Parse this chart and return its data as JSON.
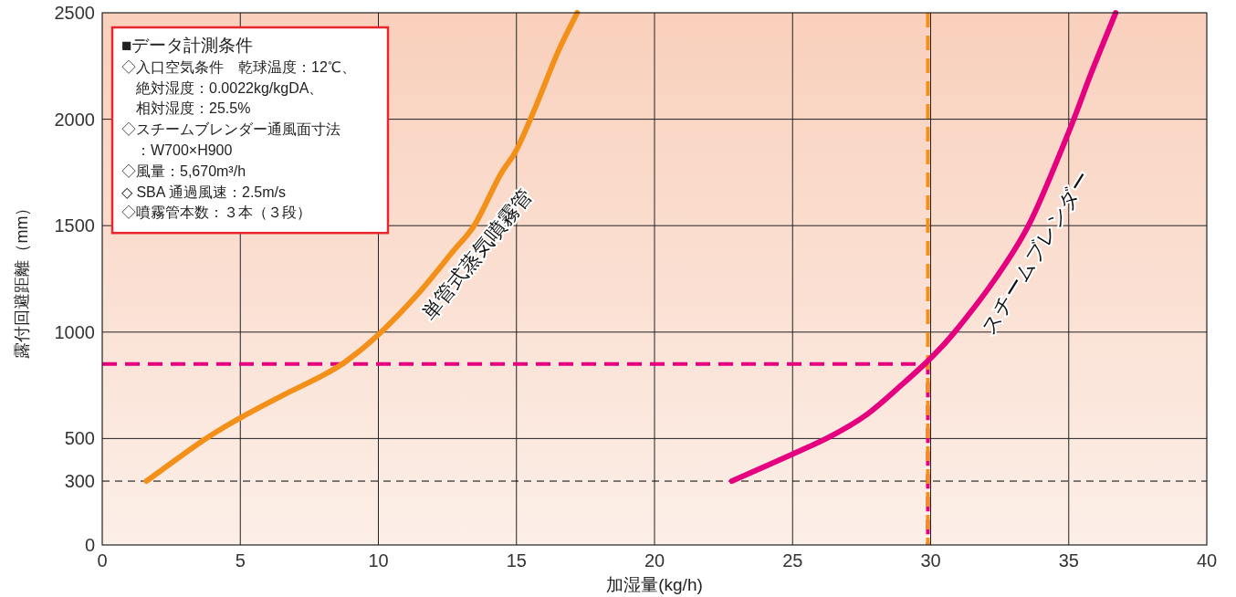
{
  "chart_data": {
    "type": "line",
    "xlabel": "加湿量(kg/h)",
    "ylabel": "露付回避距離（mm）",
    "xlim": [
      0,
      40
    ],
    "ylim": [
      0,
      2500
    ],
    "xticks": [
      0,
      5,
      10,
      15,
      20,
      25,
      30,
      35,
      40
    ],
    "yticks": [
      0,
      300,
      500,
      1000,
      1500,
      2000,
      2500
    ],
    "grid": true,
    "marker": "none",
    "series": [
      {
        "name": "単管式蒸気噴霧管",
        "color": "#f39019",
        "line_style": "solid",
        "x": [
          1.6,
          3.7,
          5,
          6.6,
          7.8,
          8.8,
          10,
          11.4,
          12.7,
          13.5,
          14.4,
          15,
          15.7,
          16.5,
          17.2
        ],
        "values": [
          300,
          495,
          597,
          707,
          784,
          860,
          988,
          1175,
          1379,
          1507,
          1736,
          1855,
          2060,
          2315,
          2500
        ]
      },
      {
        "name": "スチームブレンダー",
        "color": "#e4007f",
        "line_style": "solid",
        "x": [
          22.8,
          25,
          26.4,
          27.7,
          29,
          30,
          30.85,
          32.3,
          33.6,
          35,
          35.8,
          36.7
        ],
        "values": [
          300,
          427,
          512,
          614,
          758,
          877,
          997,
          1243,
          1515,
          1940,
          2212,
          2500
        ]
      },
      {
        "color": "#e4007f",
        "line_style": "dashed",
        "x": [
          0,
          29.9,
          29.9
        ],
        "values": [
          850,
          850,
          0
        ]
      }
    ],
    "ref_lines": [
      {
        "axis": "y",
        "value": 300,
        "color": "#000000",
        "line_style": "dashed"
      },
      {
        "axis": "x",
        "value": 29.9,
        "color": "#f39019",
        "line_style": "dashed"
      }
    ],
    "annotations": [
      "■データ計測条件",
      "◇入口空気条件　乾球温度：12℃、",
      "　絶対湿度：0.0022kg/kgDA、",
      "　相対湿度：25.5%",
      "◇スチームブレンダー通風面寸法",
      "　：W700×H900",
      "◇風量：5,670m³/h",
      "◇ SBA 通過風速：2.5m/s",
      "◇噴霧管本数：３本（３段）"
    ]
  }
}
